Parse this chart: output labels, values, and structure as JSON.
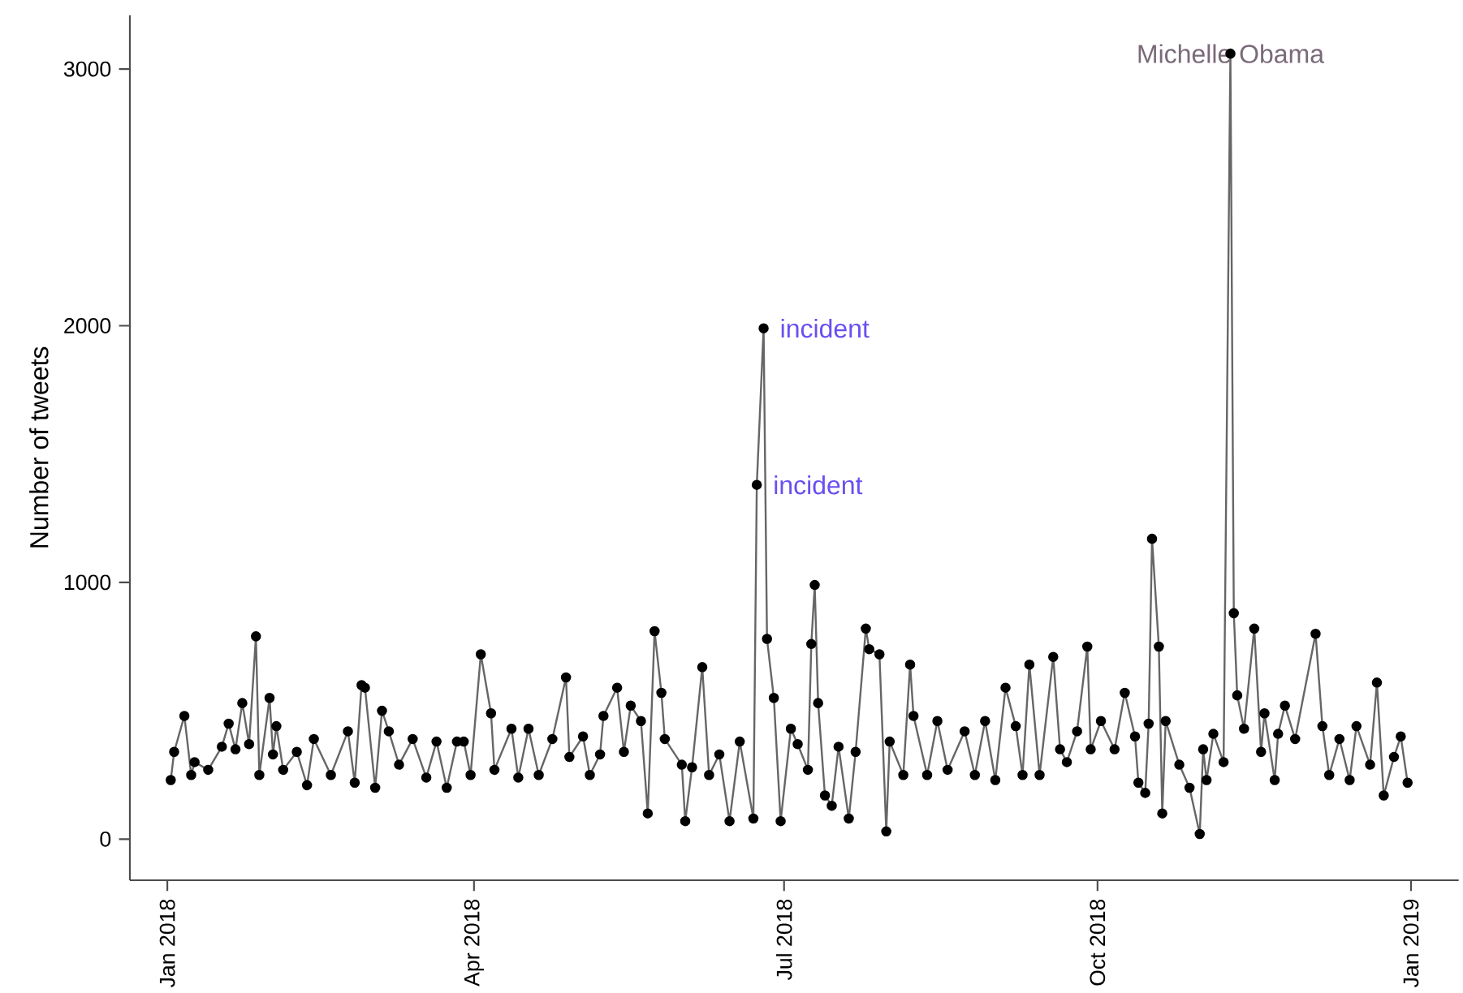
{
  "chart_data": {
    "type": "line",
    "ylabel": "Number of tweets",
    "marker": "circle",
    "grid": false,
    "xlim": [
      "2017-12-21",
      "2019-01-15"
    ],
    "ylim": [
      -160,
      3210
    ],
    "xticks": [
      {
        "value": "2018-01-01",
        "label": "Jan 2018"
      },
      {
        "value": "2018-04-01",
        "label": "Apr 2018"
      },
      {
        "value": "2018-07-01",
        "label": "Jul 2018"
      },
      {
        "value": "2018-10-01",
        "label": "Oct 2018"
      },
      {
        "value": "2019-01-01",
        "label": "Jan 2019"
      }
    ],
    "yticks": [
      0,
      1000,
      2000,
      3000
    ],
    "annotations": [
      {
        "text": "incident",
        "x": "2018-06-25",
        "y": 1990
      },
      {
        "text": "incident",
        "x": "2018-06-23",
        "y": 1380
      },
      {
        "text": "Michelle Obama",
        "x": "2018-11-09",
        "y": 3060
      }
    ],
    "series": [
      {
        "color": "#000000",
        "x": [
          "2018-01-02",
          "2018-01-03",
          "2018-01-06",
          "2018-01-08",
          "2018-01-09",
          "2018-01-13",
          "2018-01-17",
          "2018-01-19",
          "2018-01-21",
          "2018-01-23",
          "2018-01-25",
          "2018-01-27",
          "2018-01-28",
          "2018-01-31",
          "2018-02-01",
          "2018-02-02",
          "2018-02-04",
          "2018-02-08",
          "2018-02-11",
          "2018-02-13",
          "2018-02-18",
          "2018-02-23",
          "2018-02-25",
          "2018-02-27",
          "2018-02-28",
          "2018-03-03",
          "2018-03-05",
          "2018-03-07",
          "2018-03-10",
          "2018-03-14",
          "2018-03-18",
          "2018-03-21",
          "2018-03-24",
          "2018-03-27",
          "2018-03-29",
          "2018-03-31",
          "2018-04-03",
          "2018-04-06",
          "2018-04-07",
          "2018-04-12",
          "2018-04-14",
          "2018-04-17",
          "2018-04-20",
          "2018-04-24",
          "2018-04-28",
          "2018-04-29",
          "2018-05-03",
          "2018-05-05",
          "2018-05-08",
          "2018-05-09",
          "2018-05-13",
          "2018-05-15",
          "2018-05-17",
          "2018-05-20",
          "2018-05-22",
          "2018-05-24",
          "2018-05-26",
          "2018-05-27",
          "2018-06-01",
          "2018-06-02",
          "2018-06-04",
          "2018-06-07",
          "2018-06-09",
          "2018-06-12",
          "2018-06-15",
          "2018-06-18",
          "2018-06-22",
          "2018-06-23",
          "2018-06-25",
          "2018-06-26",
          "2018-06-28",
          "2018-06-30",
          "2018-07-03",
          "2018-07-05",
          "2018-07-08",
          "2018-07-09",
          "2018-07-10",
          "2018-07-11",
          "2018-07-13",
          "2018-07-15",
          "2018-07-17",
          "2018-07-20",
          "2018-07-22",
          "2018-07-25",
          "2018-07-26",
          "2018-07-29",
          "2018-07-31",
          "2018-08-01",
          "2018-08-05",
          "2018-08-07",
          "2018-08-08",
          "2018-08-12",
          "2018-08-15",
          "2018-08-18",
          "2018-08-23",
          "2018-08-26",
          "2018-08-29",
          "2018-09-01",
          "2018-09-04",
          "2018-09-07",
          "2018-09-09",
          "2018-09-11",
          "2018-09-14",
          "2018-09-18",
          "2018-09-20",
          "2018-09-22",
          "2018-09-25",
          "2018-09-28",
          "2018-09-29",
          "2018-10-02",
          "2018-10-06",
          "2018-10-09",
          "2018-10-12",
          "2018-10-13",
          "2018-10-15",
          "2018-10-16",
          "2018-10-17",
          "2018-10-19",
          "2018-10-20",
          "2018-10-21",
          "2018-10-25",
          "2018-10-28",
          "2018-10-31",
          "2018-11-01",
          "2018-11-02",
          "2018-11-04",
          "2018-11-07",
          "2018-11-09",
          "2018-11-10",
          "2018-11-11",
          "2018-11-13",
          "2018-11-16",
          "2018-11-18",
          "2018-11-19",
          "2018-11-22",
          "2018-11-23",
          "2018-11-25",
          "2018-11-28",
          "2018-12-04",
          "2018-12-06",
          "2018-12-08",
          "2018-12-11",
          "2018-12-14",
          "2018-12-16",
          "2018-12-20",
          "2018-12-22",
          "2018-12-24",
          "2018-12-27",
          "2018-12-29",
          "2018-12-31"
        ],
        "values": [
          230,
          340,
          480,
          250,
          300,
          270,
          360,
          450,
          350,
          530,
          370,
          790,
          250,
          550,
          330,
          440,
          270,
          340,
          210,
          390,
          250,
          420,
          220,
          600,
          590,
          200,
          500,
          420,
          290,
          390,
          240,
          380,
          200,
          380,
          380,
          250,
          720,
          490,
          270,
          430,
          240,
          430,
          250,
          390,
          630,
          320,
          400,
          250,
          330,
          480,
          590,
          340,
          520,
          460,
          100,
          810,
          570,
          390,
          290,
          70,
          280,
          670,
          250,
          330,
          70,
          380,
          80,
          1380,
          1990,
          780,
          550,
          70,
          430,
          370,
          270,
          760,
          990,
          530,
          170,
          130,
          360,
          80,
          340,
          820,
          740,
          720,
          30,
          380,
          250,
          680,
          480,
          250,
          460,
          270,
          420,
          250,
          460,
          230,
          590,
          440,
          250,
          680,
          250,
          710,
          350,
          300,
          420,
          750,
          350,
          460,
          350,
          570,
          400,
          220,
          180,
          450,
          1170,
          750,
          100,
          460,
          290,
          200,
          20,
          350,
          230,
          410,
          300,
          3060,
          880,
          560,
          430,
          820,
          340,
          490,
          230,
          410,
          520,
          390,
          800,
          440,
          250,
          390,
          230,
          440,
          290,
          610,
          170,
          320,
          400,
          220
        ]
      }
    ]
  }
}
